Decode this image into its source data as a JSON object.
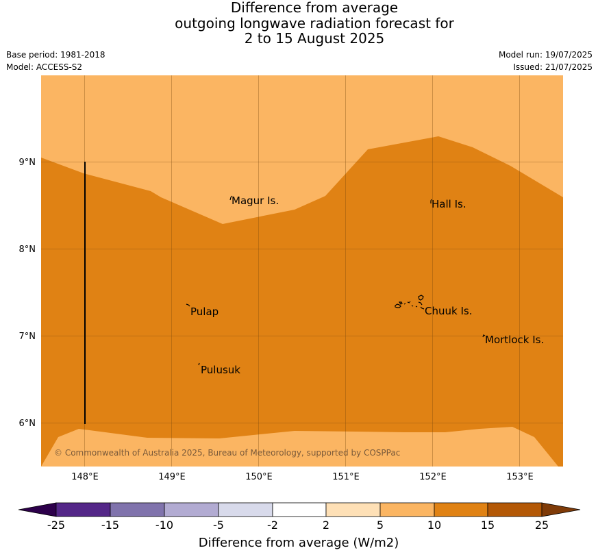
{
  "title": {
    "line1": "Difference from average",
    "line2": "outgoing longwave radiation forecast for",
    "line3": "2 to 15 August 2025"
  },
  "meta": {
    "base_period": "Base period: 1981-2018",
    "model": "Model: ACCESS-S2",
    "model_run": "Model run: 19/07/2025",
    "issued": "Issued: 21/07/2025"
  },
  "map": {
    "lon_range": [
      147.5,
      153.5
    ],
    "lat_range": [
      5.5,
      10.0
    ],
    "x_ticks": [
      "148°E",
      "149°E",
      "150°E",
      "151°E",
      "152°E",
      "153°E"
    ],
    "y_ticks": [
      "9°N",
      "8°N",
      "7°N",
      "6°N"
    ],
    "places": {
      "magur": "Magur Is.",
      "hall": "Hall Is.",
      "pulap": "Pulap",
      "chuuk": "Chuuk Is.",
      "mortlock": "Mortlock Is.",
      "pulusuk": "Pulusuk"
    },
    "copyright": "© Commonwealth of Australia 2025, Bureau of Meteorology, supported by COSPPac",
    "regions": [
      {
        "range": "5 to 10",
        "color": "#fbb562"
      },
      {
        "range": "10 to 15",
        "color": "#e08214"
      }
    ]
  },
  "colorbar": {
    "label": "Difference from average (W/m2)",
    "ticks": [
      "-25",
      "-15",
      "-10",
      "-5",
      "-2",
      "2",
      "5",
      "10",
      "15",
      "25"
    ],
    "colors": [
      "#2d004b",
      "#542788",
      "#8073ac",
      "#b2abd2",
      "#d8daeb",
      "#ffffff",
      "#fee0b6",
      "#fbb562",
      "#e08214",
      "#b35806",
      "#7f3b08"
    ]
  }
}
